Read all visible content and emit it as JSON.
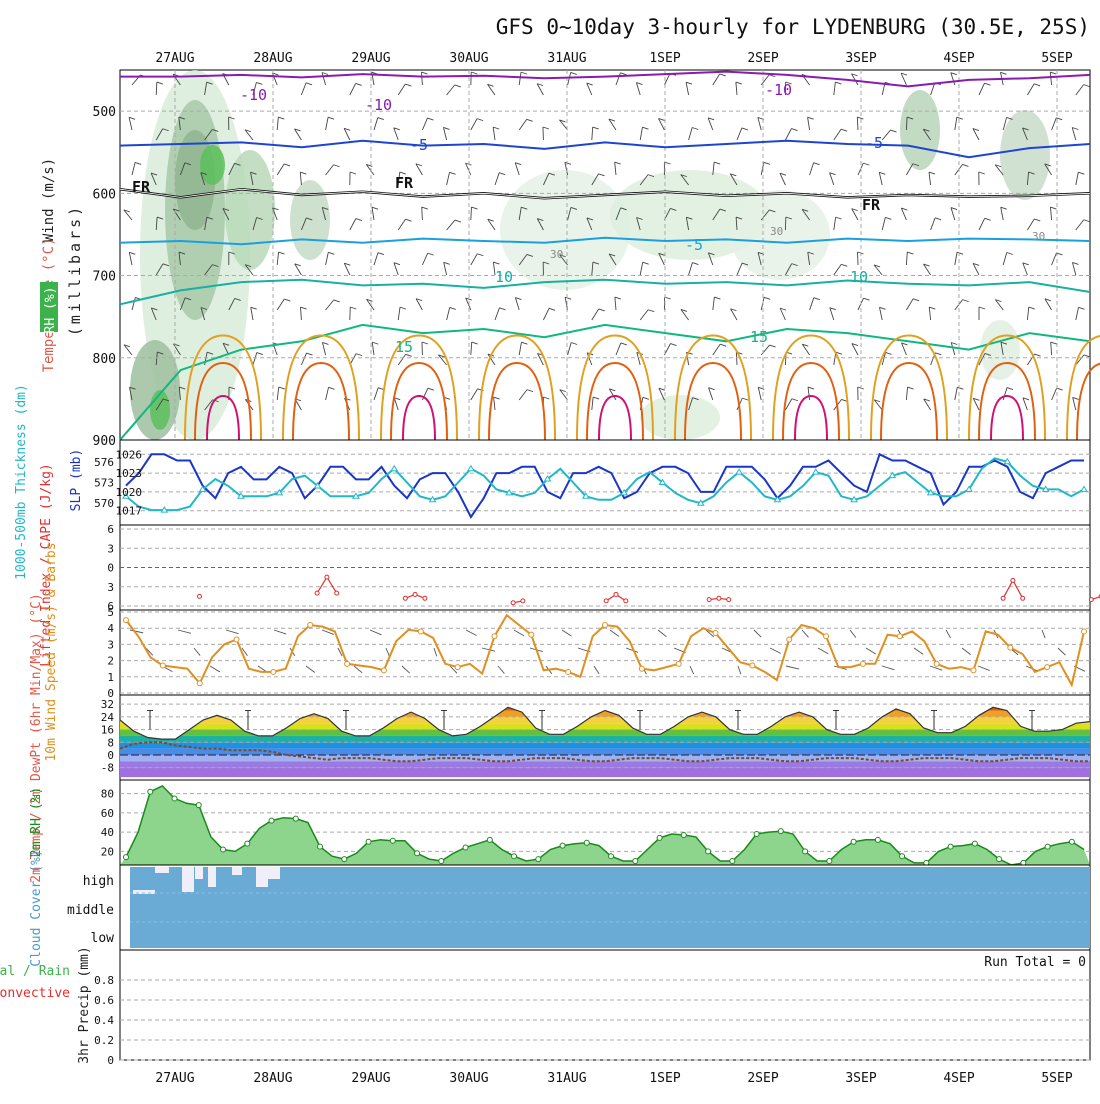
{
  "title": "GFS 0~10day 3-hourly for LYDENBURG (30.5E, 25S)",
  "dates": [
    "27AUG",
    "28AUG",
    "29AUG",
    "30AUG",
    "31AUG",
    "1SEP",
    "2SEP",
    "3SEP",
    "4SEP",
    "5SEP"
  ],
  "colors": {
    "grid": "#aaaaaa",
    "purple": "#8a1bb0",
    "blue": "#1f45d0",
    "cyan": "#1aa0e0",
    "teal": "#18b0a0",
    "green15": "#10b880",
    "orange": "#e0a020",
    "darkorange": "#e06010",
    "magenta": "#d01070",
    "slp": "#1a36c8",
    "thk": "#20b8c8",
    "li": "#e03030",
    "wind": "#e09020",
    "rh": "#1a8a1a",
    "cloud": "#6aabd6"
  },
  "chart_data": [
    {
      "type": "contour",
      "panel": "upper-air",
      "ylabel": "(millibars)",
      "side_labels": [
        "Wind (m/s)",
        "Temperature (°C)",
        "RH (%)"
      ],
      "yticks": [
        500,
        600,
        700,
        800,
        900
      ],
      "ylim": [
        450,
        900
      ],
      "isotherm_labels": [
        "-10",
        "-10",
        "-10",
        "-5",
        "-5",
        "FR",
        "FR",
        "FR",
        "-5",
        "10",
        "10",
        "15",
        "15",
        "30",
        "30",
        "30"
      ],
      "isotherms": [
        {
          "name": "-10",
          "p": [
            458,
            458,
            456,
            459,
            455,
            458,
            457,
            460,
            458,
            455,
            452,
            456,
            462,
            470,
            462,
            460,
            456
          ]
        },
        {
          "name": "-5",
          "p": [
            542,
            540,
            538,
            544,
            536,
            542,
            540,
            546,
            538,
            544,
            540,
            536,
            540,
            542,
            556,
            545,
            540
          ]
        },
        {
          "name": "FR",
          "p": [
            595,
            605,
            595,
            602,
            598,
            604,
            600,
            606,
            602,
            598,
            603,
            600,
            605,
            602,
            604,
            603,
            600
          ]
        },
        {
          "name": "-5b",
          "p": [
            660,
            658,
            662,
            656,
            660,
            655,
            658,
            660,
            654,
            658,
            656,
            660,
            655,
            658,
            655,
            656,
            658
          ]
        },
        {
          "name": "10",
          "p": [
            735,
            718,
            708,
            705,
            712,
            710,
            715,
            708,
            705,
            710,
            708,
            712,
            706,
            710,
            712,
            708,
            720
          ]
        },
        {
          "name": "15",
          "p": [
            900,
            815,
            790,
            780,
            760,
            770,
            765,
            775,
            760,
            770,
            780,
            765,
            770,
            780,
            790,
            770,
            780
          ]
        }
      ]
    },
    {
      "type": "line",
      "panel": "slp-thickness",
      "series_names": [
        "SLP (mb)",
        "1000-500mb Thickness (dm)"
      ],
      "y_left_ticks": [
        "576",
        "573",
        "570"
      ],
      "y_right_ticks": [
        "1026",
        "1023",
        "1020",
        "1017"
      ],
      "slp": [
        1021,
        1023,
        1026,
        1026,
        1025,
        1025,
        1021,
        1019,
        1023,
        1024,
        1022,
        1022,
        1024,
        1023,
        1019,
        1021,
        1024,
        1024,
        1022,
        1022,
        1024,
        1021,
        1019,
        1022,
        1023,
        1023,
        1020,
        1016,
        1019,
        1023,
        1023,
        1024,
        1024,
        1020,
        1019,
        1023,
        1023,
        1024,
        1023,
        1019,
        1020,
        1023,
        1024,
        1024,
        1023,
        1020,
        1020,
        1024,
        1024,
        1024,
        1022,
        1019,
        1021,
        1024,
        1024,
        1025,
        1023,
        1021,
        1020,
        1026,
        1025,
        1025,
        1024,
        1023,
        1018,
        1020,
        1024,
        1024,
        1025,
        1024,
        1020,
        1019,
        1023,
        1024,
        1025,
        1025
      ],
      "thickness": [
        571,
        569.5,
        569,
        569,
        569,
        569.5,
        572,
        573.5,
        572.5,
        571,
        571,
        571,
        571.5,
        573.5,
        574,
        572.5,
        571,
        571,
        571,
        571.5,
        573.5,
        575,
        573,
        571,
        570.5,
        571,
        573,
        575,
        574,
        572,
        571.5,
        571,
        571.5,
        573.5,
        575,
        573,
        571,
        570.5,
        570.5,
        571.5,
        573.5,
        574.5,
        573,
        571.5,
        570.5,
        570,
        571,
        573,
        574.5,
        573,
        571,
        570.5,
        571,
        572.5,
        574.5,
        574,
        571,
        570.5,
        571,
        572.5,
        574,
        574.5,
        573,
        571.5,
        571,
        571,
        572,
        575,
        576.5,
        576,
        574,
        572.5,
        572,
        572,
        571,
        572
      ]
    },
    {
      "type": "line",
      "panel": "lifted-index",
      "ylabel": "Lifted Index / CAPE (J/kg)",
      "yticks": [
        "6",
        "3",
        "0",
        "3",
        "6"
      ],
      "li_points": [
        {
          "t": 0.25,
          "v": 4.5
        },
        {
          "t": 1.45,
          "v": 4
        },
        {
          "t": 1.55,
          "v": 1.5
        },
        {
          "t": 1.65,
          "v": 4
        },
        {
          "t": 2.35,
          "v": 4.8
        },
        {
          "t": 2.45,
          "v": 4.2
        },
        {
          "t": 2.55,
          "v": 4.8
        },
        {
          "t": 3.45,
          "v": 5.5
        },
        {
          "t": 3.55,
          "v": 5.2
        },
        {
          "t": 4.4,
          "v": 5.2
        },
        {
          "t": 4.5,
          "v": 4.2
        },
        {
          "t": 4.6,
          "v": 5.2
        },
        {
          "t": 5.45,
          "v": 5
        },
        {
          "t": 5.55,
          "v": 4.8
        },
        {
          "t": 5.65,
          "v": 5
        },
        {
          "t": 8.45,
          "v": 4.8
        },
        {
          "t": 8.55,
          "v": 2
        },
        {
          "t": 8.65,
          "v": 4.8
        },
        {
          "t": 9.35,
          "v": 5
        },
        {
          "t": 9.45,
          "v": 4.5
        },
        {
          "t": 9.55,
          "v": 5
        }
      ]
    },
    {
      "type": "line",
      "panel": "10m-wind",
      "ylabel": "10m Wind Speed (m/s) & Barbs",
      "yticks": [
        "5",
        "4",
        "3",
        "2",
        "1",
        "0"
      ],
      "speed": [
        4.5,
        3.5,
        2.2,
        1.7,
        1.6,
        1.5,
        0.6,
        2.2,
        3,
        3.3,
        1.5,
        1.3,
        1.3,
        1.5,
        3.5,
        4.2,
        4.1,
        3.8,
        1.8,
        1.7,
        1.6,
        1.4,
        3.2,
        3.9,
        3.8,
        3.4,
        1.8,
        1.6,
        1.8,
        1.2,
        3.5,
        4.8,
        4.2,
        3.6,
        1.4,
        1.5,
        1.3,
        1,
        3.5,
        4.2,
        4.1,
        3.2,
        1.5,
        1.4,
        1.6,
        1.8,
        3.5,
        4,
        3.7,
        2.8,
        1.9,
        1.7,
        1.3,
        0.8,
        3.3,
        4.2,
        4,
        3.5,
        1.6,
        1.6,
        1.8,
        1.8,
        3.6,
        3.5,
        3.8,
        3.2,
        1.8,
        1.5,
        1.6,
        1.4,
        3.8,
        3.6,
        2.8,
        2.4,
        1.3,
        1.6,
        1.9,
        0.5,
        3.8
      ]
    },
    {
      "type": "area",
      "panel": "2m-temp",
      "ylabel": "2m Temp / 2m DewPt (6hr Min/Max) (°C)",
      "yticks": [
        "32",
        "24",
        "16",
        "8",
        "0",
        "-8"
      ],
      "temp": [
        22,
        15,
        11,
        10,
        10,
        16,
        22,
        25,
        22,
        15,
        12,
        12,
        17,
        23,
        26,
        23,
        15,
        12,
        12,
        17,
        23,
        27,
        23,
        16,
        12,
        13,
        18,
        24,
        30,
        27,
        17,
        13,
        13,
        18,
        24,
        28,
        25,
        17,
        13,
        13,
        18,
        24,
        27,
        24,
        16,
        13,
        13,
        18,
        24,
        27,
        24,
        16,
        13,
        13,
        17,
        24,
        29,
        26,
        17,
        14,
        14,
        18,
        25,
        30,
        28,
        18,
        15,
        15,
        16,
        20,
        21
      ],
      "dewpoint": [
        4,
        7,
        8,
        8,
        6,
        5,
        4,
        4,
        3,
        3,
        3,
        2,
        0,
        -1,
        -2,
        -3,
        -2,
        -2,
        -2,
        -3,
        -4,
        -4,
        -3,
        -2,
        -2,
        -2,
        -3,
        -4,
        -4,
        -3,
        -2,
        -2,
        -2,
        -3,
        -4,
        -4,
        -3,
        -2,
        -2,
        -2,
        -3,
        -4,
        -4,
        -3,
        -2,
        -2,
        -2,
        -3,
        -4,
        -4,
        -3,
        -2,
        -2,
        -2,
        -3,
        -4,
        -4,
        -3,
        -2,
        -2,
        -2,
        -3,
        -4,
        -4,
        -3,
        -2,
        -2,
        -2,
        -3,
        -4,
        -4
      ]
    },
    {
      "type": "area",
      "panel": "2m-rh",
      "ylabel": "2m RH (%)",
      "yticks": [
        "80",
        "60",
        "40",
        "20"
      ],
      "rh": [
        14,
        40,
        82,
        88,
        75,
        70,
        68,
        35,
        22,
        20,
        28,
        44,
        52,
        55,
        54,
        50,
        25,
        15,
        12,
        18,
        30,
        32,
        31,
        31,
        18,
        12,
        10,
        18,
        24,
        28,
        32,
        22,
        15,
        10,
        12,
        22,
        26,
        28,
        29,
        26,
        15,
        10,
        10,
        22,
        34,
        38,
        37,
        35,
        20,
        10,
        10,
        22,
        38,
        40,
        41,
        38,
        20,
        10,
        10,
        22,
        30,
        32,
        32,
        28,
        15,
        8,
        8,
        20,
        25,
        26,
        28,
        22,
        12,
        6,
        8,
        20,
        25,
        28,
        30,
        22
      ]
    },
    {
      "type": "heatmap",
      "panel": "cloud-cover",
      "ylabel": "Cloud Cover (%)",
      "levels": [
        "high",
        "middle",
        "low"
      ]
    },
    {
      "type": "bar",
      "panel": "3hr-precip",
      "ylabel": "3hr Precip (mm)",
      "side_labels": [
        "Total / Rain",
        "Convective"
      ],
      "yticks": [
        "0.8",
        "0.6",
        "0.4",
        "0.2",
        "0"
      ],
      "run_total_label": "Run Total = 0"
    }
  ]
}
